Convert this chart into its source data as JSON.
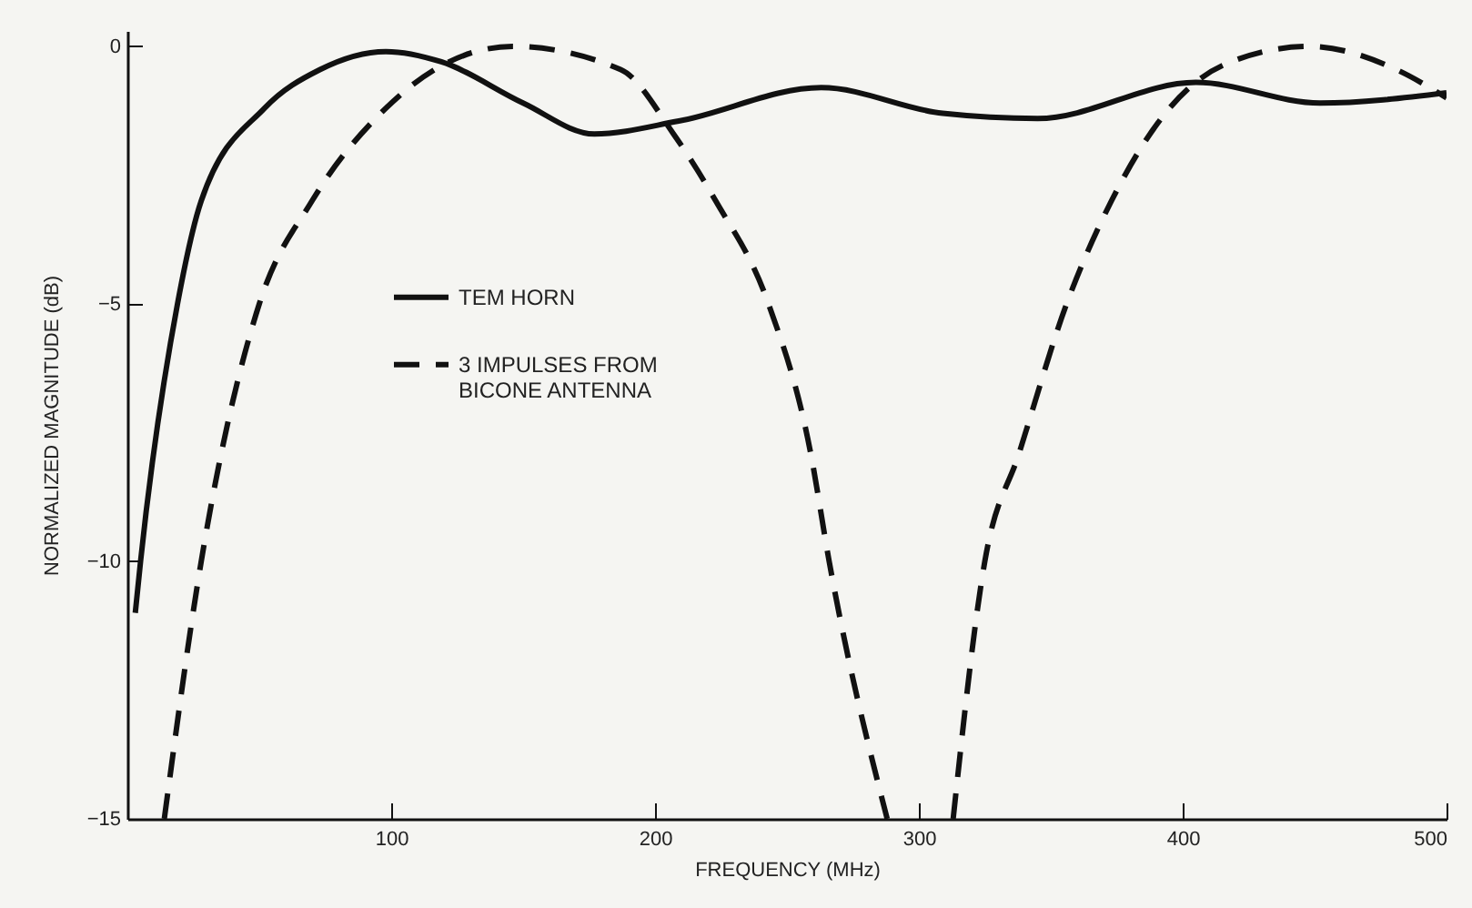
{
  "chart_data": {
    "type": "line",
    "xlabel": "FREQUENCY (MHz)",
    "ylabel": "NORMALIZED MAGNITUDE (dB)",
    "xlim": [
      0,
      500
    ],
    "ylim": [
      -15,
      0.3
    ],
    "xticks": [
      100,
      200,
      300,
      400,
      500
    ],
    "yticks": [
      0,
      -5,
      -10,
      -15
    ],
    "grid": false,
    "legend": "left",
    "series": [
      {
        "name": "TEM HORN",
        "color": "#111111",
        "line_style": "solid",
        "x": [
          3,
          5,
          19,
          28,
          52,
          73,
          98,
          119,
          150,
          177,
          209,
          263,
          309,
          345,
          405,
          452,
          500
        ],
        "values": [
          -11,
          -10,
          -5,
          -3,
          -1.2,
          -0.45,
          -0.1,
          -0.3,
          -1.1,
          -1.7,
          -1.45,
          -0.8,
          -1.3,
          -1.4,
          -0.7,
          -1.1,
          -0.9
        ]
      },
      {
        "name": "3 IMPULSES FROM BICONE ANTENNA",
        "color": "#111111",
        "line_style": "dashed",
        "x": [
          14,
          28,
          50,
          70,
          98,
          120,
          146,
          187,
          207,
          223,
          243,
          259,
          266,
          288,
          300,
          313,
          325,
          338,
          356,
          373,
          395,
          416,
          448,
          481,
          500
        ],
        "values": [
          -15,
          -10,
          -5,
          -3,
          -1.2,
          -0.35,
          0,
          -0.45,
          -1.7,
          -3,
          -5,
          -7.9,
          -10,
          -15,
          null,
          -15,
          -10,
          -7.9,
          -5,
          -3,
          -1.2,
          -0.35,
          0,
          -0.45,
          -1.0
        ]
      }
    ]
  }
}
